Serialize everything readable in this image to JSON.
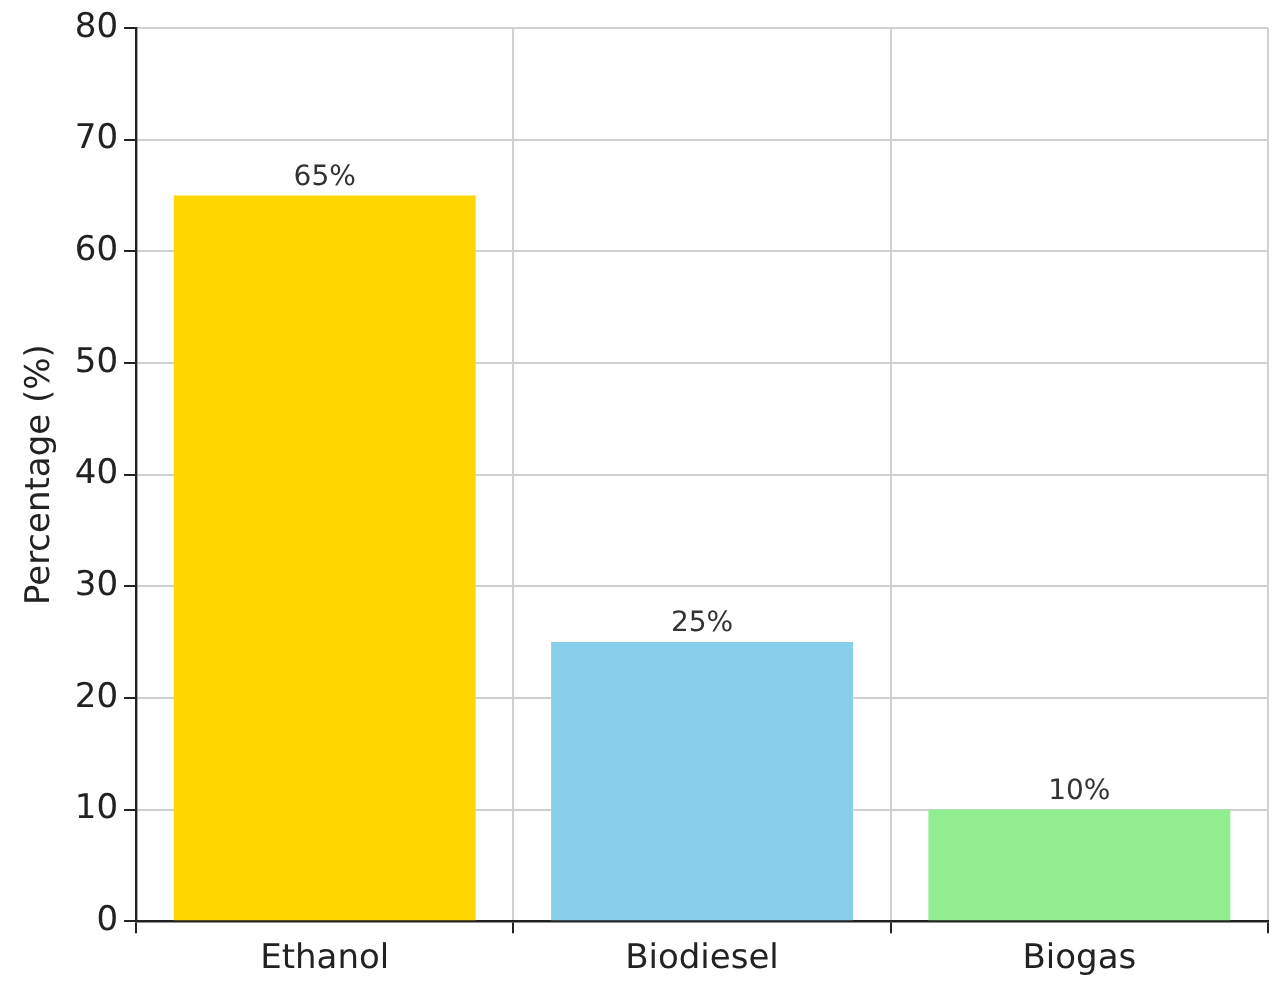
{
  "chart_data": {
    "type": "bar",
    "ylabel": "Percentage (%)",
    "categories": [
      "Ethanol",
      "Biodiesel",
      "Biogas"
    ],
    "values": [
      65,
      25,
      10
    ],
    "colors": [
      "#ffd700",
      "#87ceeb",
      "#90ee90"
    ],
    "value_labels": [
      "65%",
      "25%",
      "10%"
    ],
    "ylim": [
      0,
      80
    ],
    "yticks": [
      0,
      10,
      20,
      30,
      40,
      50,
      60,
      70,
      80
    ],
    "grid": true,
    "legend": false
  }
}
